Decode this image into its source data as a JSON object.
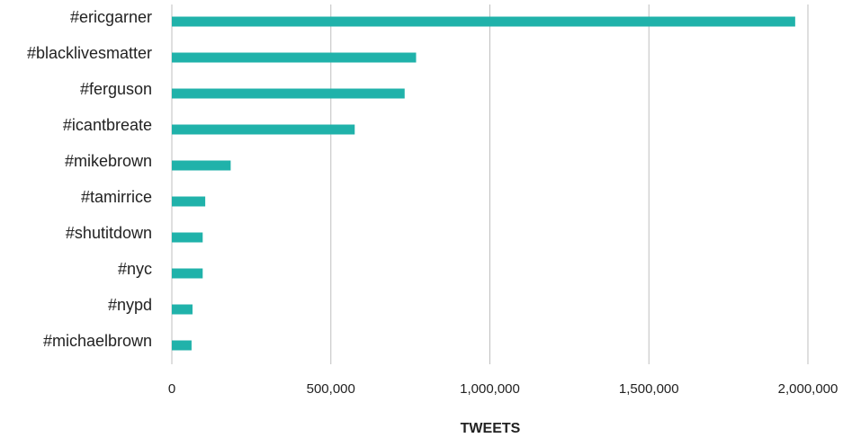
{
  "chart_data": {
    "type": "bar",
    "orientation": "horizontal",
    "title": "",
    "xlabel": "TWEETS",
    "ylabel": "",
    "categories": [
      "#ericgarner",
      "#blacklivesmatter",
      "#ferguson",
      "#icantbreate",
      "#mikebrown",
      "#tamirrice",
      "#shutitdown",
      "#nyc",
      "#nypd",
      "#michaelbrown"
    ],
    "values": [
      1960000,
      768000,
      732000,
      575000,
      185000,
      105000,
      97000,
      97000,
      65000,
      62000
    ],
    "xlim": [
      0,
      2000000
    ],
    "x_ticks": [
      0,
      500000,
      1000000,
      1500000,
      2000000
    ],
    "x_tick_labels": [
      "0",
      "500,000",
      "1,000,000",
      "1,500,000",
      "2,000,000"
    ],
    "grid": "vertical",
    "legend": "none",
    "bar_color": "#20b2aa",
    "grid_color": "#bfbfbf"
  }
}
